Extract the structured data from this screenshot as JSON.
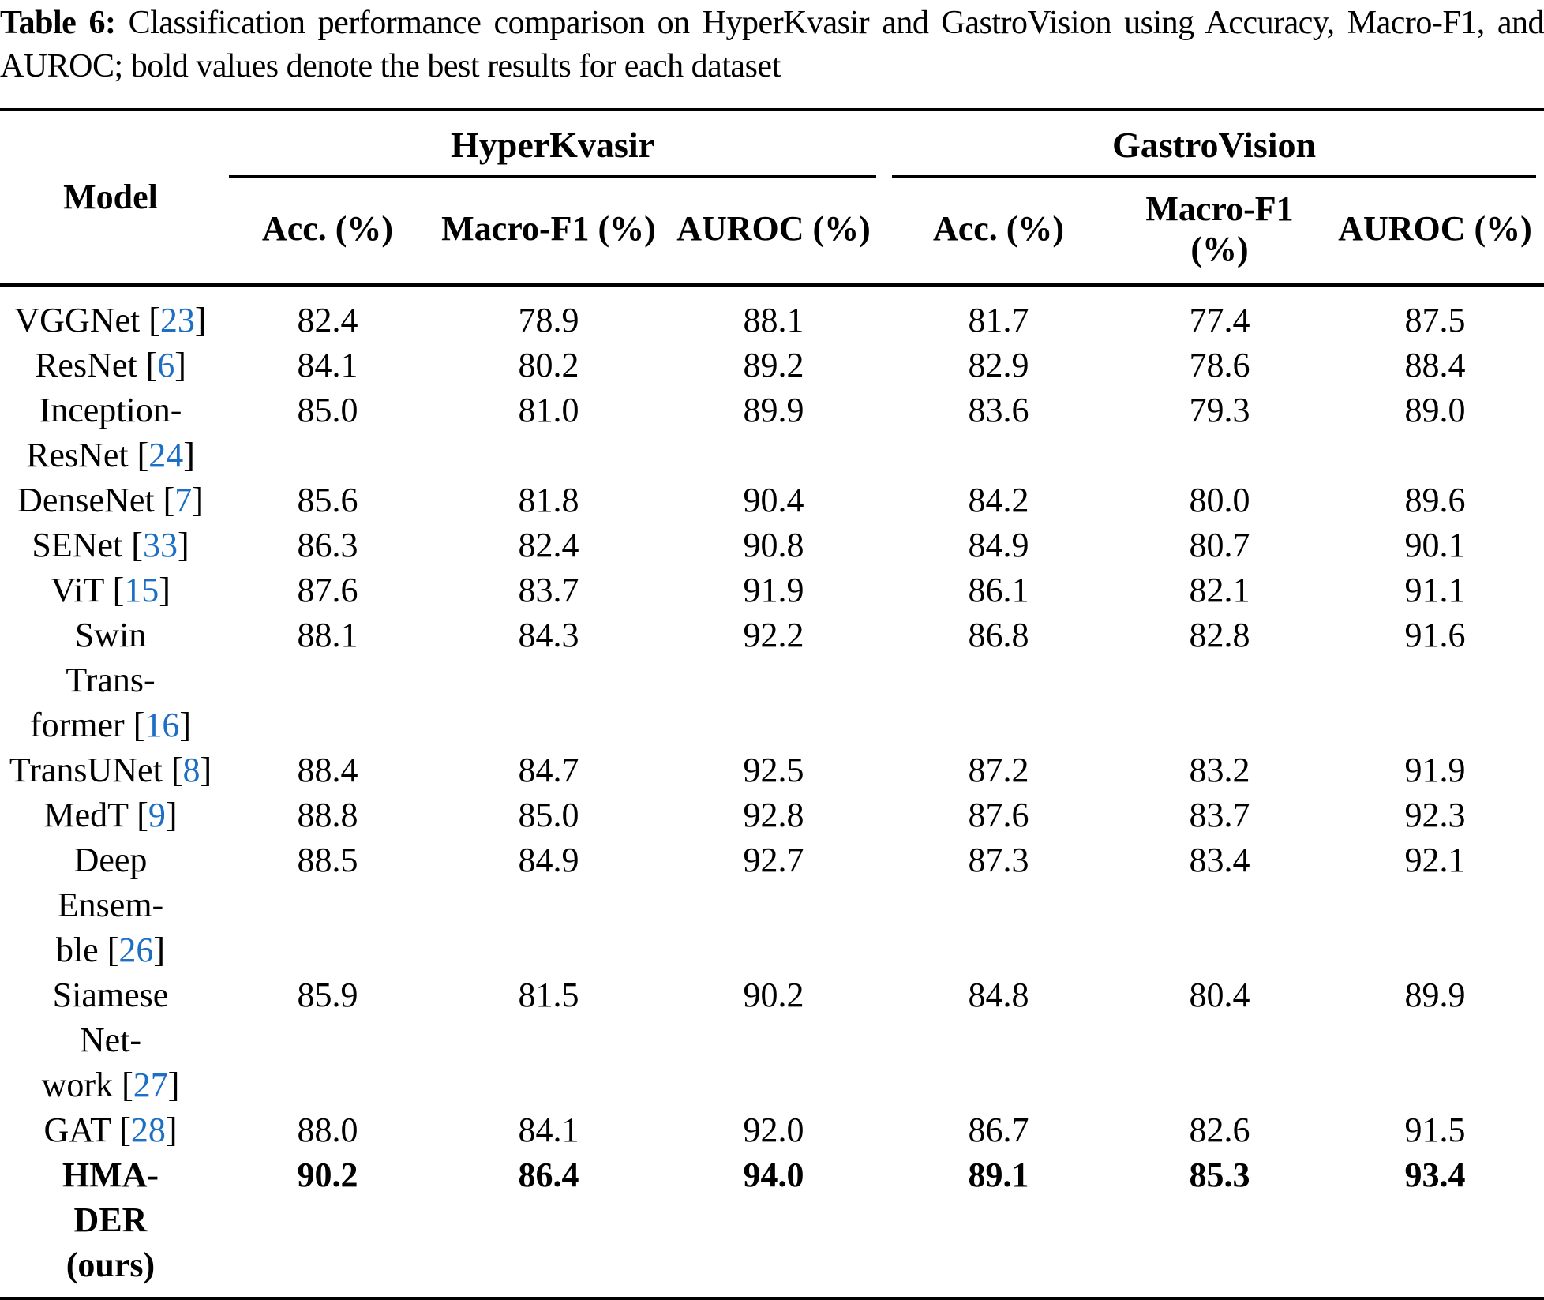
{
  "caption": {
    "label": "Table 6:",
    "text": "Classification performance comparison on HyperKvasir and GastroVision using Accuracy, Macro-F1, and AUROC; bold values denote the best results for each dataset"
  },
  "colors": {
    "citation_blue": "#1c6fc5",
    "text": "#000000",
    "background": "#ffffff"
  },
  "table": {
    "model_header": "Model",
    "groups": [
      {
        "label": "HyperKvasir",
        "columns": [
          "Acc. (%)",
          "Macro-F1 (%)",
          "AUROC (%)"
        ]
      },
      {
        "label": "GastroVision",
        "columns": [
          "Acc. (%)",
          "Macro-F1 (%)",
          "AUROC (%)"
        ]
      }
    ],
    "rows": [
      {
        "model_lines": [
          {
            "text": "VGGNet",
            "cite": "23"
          }
        ],
        "values": [
          "82.4",
          "78.9",
          "88.1",
          "81.7",
          "77.4",
          "87.5"
        ],
        "bold": false
      },
      {
        "model_lines": [
          {
            "text": "ResNet",
            "cite": "6"
          }
        ],
        "values": [
          "84.1",
          "80.2",
          "89.2",
          "82.9",
          "78.6",
          "88.4"
        ],
        "bold": false
      },
      {
        "model_lines": [
          {
            "text": "Inception-"
          },
          {
            "text": "ResNet",
            "cite": "24"
          }
        ],
        "values": [
          "85.0",
          "81.0",
          "89.9",
          "83.6",
          "79.3",
          "89.0"
        ],
        "bold": false
      },
      {
        "model_lines": [
          {
            "text": "DenseNet",
            "cite": "7"
          }
        ],
        "values": [
          "85.6",
          "81.8",
          "90.4",
          "84.2",
          "80.0",
          "89.6"
        ],
        "bold": false
      },
      {
        "model_lines": [
          {
            "text": "SENet",
            "cite": "33"
          }
        ],
        "values": [
          "86.3",
          "82.4",
          "90.8",
          "84.9",
          "80.7",
          "90.1"
        ],
        "bold": false
      },
      {
        "model_lines": [
          {
            "text": "ViT",
            "cite": "15"
          }
        ],
        "values": [
          "87.6",
          "83.7",
          "91.9",
          "86.1",
          "82.1",
          "91.1"
        ],
        "bold": false
      },
      {
        "model_lines": [
          {
            "text": "Swin"
          },
          {
            "text": "Trans-"
          },
          {
            "text": "former",
            "cite": "16"
          }
        ],
        "values": [
          "88.1",
          "84.3",
          "92.2",
          "86.8",
          "82.8",
          "91.6"
        ],
        "bold": false
      },
      {
        "model_lines": [
          {
            "text": "TransUNet",
            "cite": "8"
          }
        ],
        "values": [
          "88.4",
          "84.7",
          "92.5",
          "87.2",
          "83.2",
          "91.9"
        ],
        "bold": false
      },
      {
        "model_lines": [
          {
            "text": "MedT",
            "cite": "9"
          }
        ],
        "values": [
          "88.8",
          "85.0",
          "92.8",
          "87.6",
          "83.7",
          "92.3"
        ],
        "bold": false
      },
      {
        "model_lines": [
          {
            "text": "Deep"
          },
          {
            "text": "Ensem-"
          },
          {
            "text": "ble",
            "cite": "26"
          }
        ],
        "values": [
          "88.5",
          "84.9",
          "92.7",
          "87.3",
          "83.4",
          "92.1"
        ],
        "bold": false
      },
      {
        "model_lines": [
          {
            "text": "Siamese"
          },
          {
            "text": "Net-"
          },
          {
            "text": "work",
            "cite": "27"
          }
        ],
        "values": [
          "85.9",
          "81.5",
          "90.2",
          "84.8",
          "80.4",
          "89.9"
        ],
        "bold": false
      },
      {
        "model_lines": [
          {
            "text": "GAT",
            "cite": "28"
          }
        ],
        "values": [
          "88.0",
          "84.1",
          "92.0",
          "86.7",
          "82.6",
          "91.5"
        ],
        "bold": false
      },
      {
        "model_lines": [
          {
            "text": "HMA-"
          },
          {
            "text": "DER"
          },
          {
            "text": "(ours)"
          }
        ],
        "values": [
          "90.2",
          "86.4",
          "94.0",
          "89.1",
          "85.3",
          "93.4"
        ],
        "bold": true
      }
    ]
  }
}
